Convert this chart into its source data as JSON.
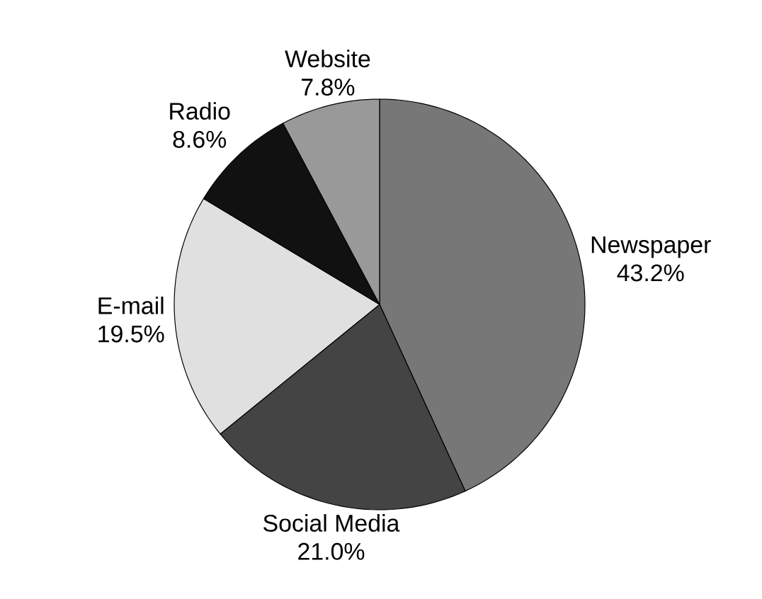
{
  "chart_data": {
    "type": "pie",
    "categories": [
      "Newspaper",
      "Social Media",
      "E-mail",
      "Radio",
      "Website"
    ],
    "values": [
      43.2,
      21.0,
      19.5,
      8.6,
      7.8
    ],
    "value_labels": [
      "43.2%",
      "21.0%",
      "19.5%",
      "8.6%",
      "7.8%"
    ],
    "colors": [
      "#777777",
      "#444444",
      "#e0e0e0",
      "#111111",
      "#999999"
    ]
  }
}
